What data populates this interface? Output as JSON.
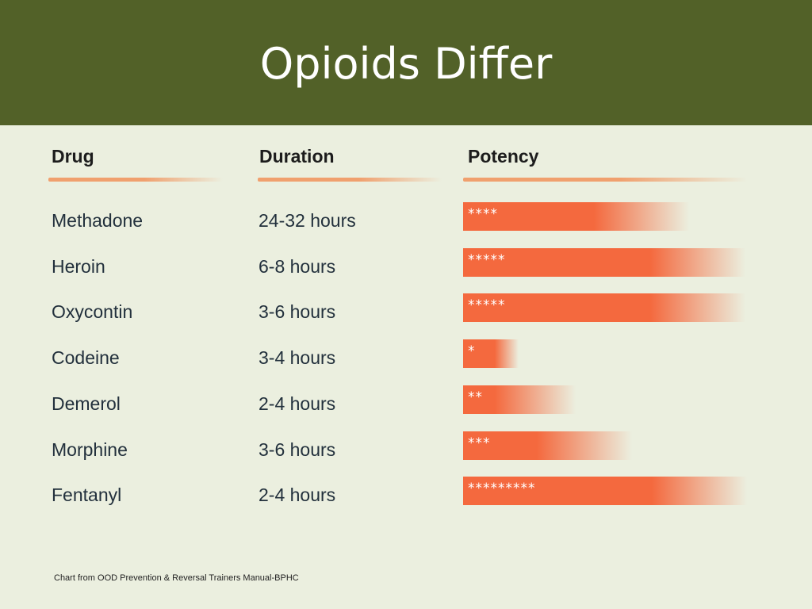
{
  "slide": {
    "title": "Opioids Differ",
    "footer": "Chart from OOD Prevention & Reversal Trainers Manual-BPHC"
  },
  "colors": {
    "banner": "#526128",
    "background": "#ebefdf",
    "bar": "#f4693e",
    "underline": "#f0a06e"
  },
  "chart_data": {
    "type": "table",
    "columns": [
      "Drug",
      "Duration",
      "Potency"
    ],
    "rows": [
      {
        "drug": "Methadone",
        "duration": "24-32 hours",
        "potency_label": "****",
        "potency_stars": 4
      },
      {
        "drug": "Heroin",
        "duration": "6-8 hours",
        "potency_label": "*****",
        "potency_stars": 5
      },
      {
        "drug": "Oxycontin",
        "duration": "3-6 hours",
        "potency_label": "*****",
        "potency_stars": 5
      },
      {
        "drug": "Codeine",
        "duration": "3-4 hours",
        "potency_label": "*",
        "potency_stars": 1
      },
      {
        "drug": "Demerol",
        "duration": "2-4 hours",
        "potency_label": "**",
        "potency_stars": 2
      },
      {
        "drug": "Morphine",
        "duration": "3-6 hours",
        "potency_label": "***",
        "potency_stars": 3
      },
      {
        "drug": "Fentanyl",
        "duration": "2-4 hours",
        "potency_label": "*********",
        "potency_stars": 9
      }
    ]
  }
}
